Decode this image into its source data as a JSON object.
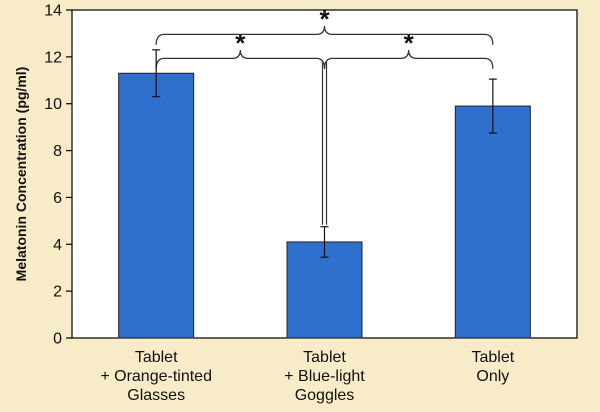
{
  "chart_data": {
    "type": "bar",
    "title": "",
    "xlabel": "",
    "ylabel": "Melatonin Concentration (pg/ml)",
    "ylim": [
      0,
      14
    ],
    "yticks": [
      0,
      2,
      4,
      6,
      8,
      10,
      12,
      14
    ],
    "categories": [
      [
        "Tablet",
        "+ Orange-tinted",
        "Glasses"
      ],
      [
        "Tablet",
        "+ Blue-light",
        "Goggles"
      ],
      [
        "Tablet",
        "Only"
      ]
    ],
    "values": [
      11.3,
      4.1,
      9.9
    ],
    "errors": [
      1.0,
      0.65,
      1.15
    ],
    "bar_color": "#2f6fce",
    "background_color": "#f8ebc8",
    "plot_background_color": "#ffffff",
    "significance": [
      {
        "from": 0,
        "to": 1,
        "label": "*"
      },
      {
        "from": 1,
        "to": 2,
        "label": "*"
      },
      {
        "from": 0,
        "to": 2,
        "label": "*"
      }
    ]
  }
}
